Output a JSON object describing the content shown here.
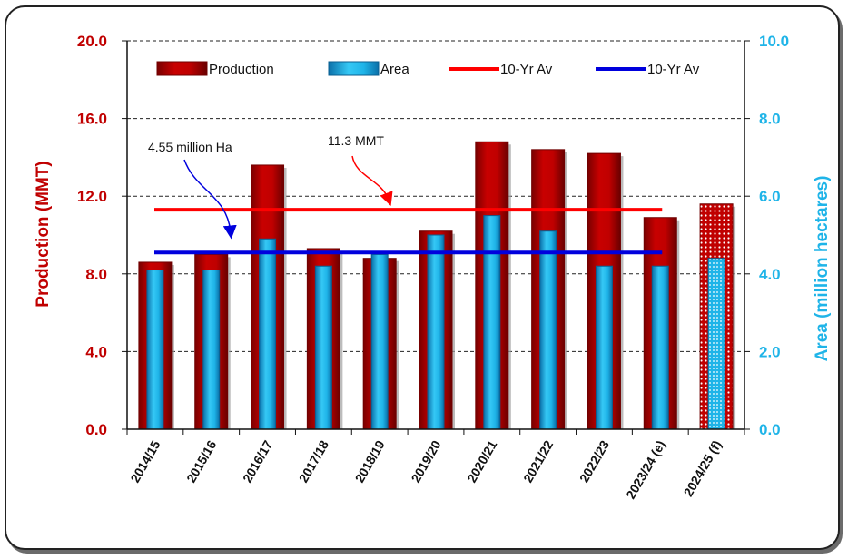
{
  "chart_data": {
    "type": "bar",
    "categories": [
      "2014/15",
      "2015/16",
      "2016/17",
      "2017/18",
      "2018/19",
      "2019/20",
      "2020/21",
      "2021/22",
      "2022/23",
      "2023/24 (e)",
      "2024/25 (f)"
    ],
    "series": [
      {
        "name": "Production",
        "axis": "left",
        "values": [
          8.6,
          9.0,
          13.6,
          9.3,
          8.8,
          10.2,
          14.8,
          14.4,
          14.2,
          10.9,
          11.6
        ],
        "color": "#c00000"
      },
      {
        "name": "Area",
        "axis": "right",
        "values": [
          4.1,
          4.1,
          4.9,
          4.2,
          4.5,
          5.0,
          5.5,
          5.1,
          4.2,
          4.2,
          4.4
        ],
        "color": "#1fb4e8"
      }
    ],
    "reference_lines": [
      {
        "name": "10-Yr Av",
        "axis": "left",
        "value": 11.3,
        "color": "#ff0000"
      },
      {
        "name": "10-Yr Av",
        "axis": "right",
        "value": 4.55,
        "color": "#0000dd"
      }
    ],
    "forecast_categories": [
      "2024/25 (f)"
    ],
    "ylabel": "Production (MMT)",
    "ylabel_right": "Area (million hectares)",
    "ylim": [
      0,
      20
    ],
    "ylim_right": [
      0,
      10
    ],
    "yticks": [
      "0.0",
      "4.0",
      "8.0",
      "12.0",
      "16.0",
      "20.0"
    ],
    "yticks_right": [
      "0.0",
      "2.0",
      "4.0",
      "6.0",
      "8.0",
      "10.0"
    ],
    "grid": "horizontal dashed",
    "legend_position": "top",
    "legend": [
      "Production",
      "Area",
      "10-Yr Av",
      "10-Yr Av"
    ],
    "annotations": [
      {
        "text": "4.55 million Ha"
      },
      {
        "text": "11.3 MMT"
      }
    ]
  }
}
